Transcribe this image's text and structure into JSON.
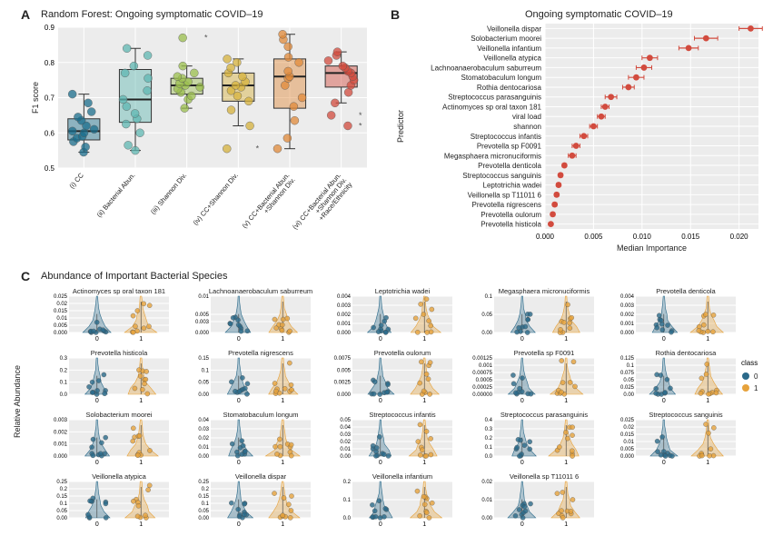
{
  "panelA": {
    "label": "A",
    "title": "Random Forest: Ongoing symptomatic COVID–19",
    "ylabel": "F1 score",
    "ylim": [
      0.5,
      0.9
    ],
    "ytick_step": 0.1,
    "plot_bg": "#ececec",
    "grid_color": "#ffffff",
    "categories": [
      "(i) CC",
      "(ii) Bacterial Abun.",
      "(iii) Shannon Div.",
      "(iv) CC+Shannon Div.",
      "(v) CC+Bacterial Abun.\n+Shannon Div.",
      "(vi) CC+Bacterial Abun.\n+Shannon Div.\n+Race/Ethnicity"
    ],
    "colors": [
      "#1b6e8c",
      "#5fb7b2",
      "#9bbf4d",
      "#d6b23c",
      "#e08a3a",
      "#d24b3e"
    ],
    "box": [
      {
        "q1": 0.58,
        "med": 0.605,
        "q3": 0.64,
        "lw": 0.545,
        "uw": 0.71
      },
      {
        "q1": 0.63,
        "med": 0.695,
        "q3": 0.78,
        "lw": 0.55,
        "uw": 0.84
      },
      {
        "q1": 0.71,
        "med": 0.735,
        "q3": 0.755,
        "lw": 0.67,
        "uw": 0.79
      },
      {
        "q1": 0.69,
        "med": 0.735,
        "q3": 0.77,
        "lw": 0.62,
        "uw": 0.81
      },
      {
        "q1": 0.67,
        "med": 0.76,
        "q3": 0.81,
        "lw": 0.555,
        "uw": 0.88
      },
      {
        "q1": 0.73,
        "med": 0.77,
        "q3": 0.79,
        "lw": 0.685,
        "uw": 0.83
      }
    ],
    "points": [
      [
        0.545,
        0.56,
        0.575,
        0.585,
        0.59,
        0.6,
        0.605,
        0.61,
        0.62,
        0.635,
        0.645,
        0.66,
        0.685,
        0.71
      ],
      [
        0.55,
        0.565,
        0.6,
        0.625,
        0.64,
        0.655,
        0.675,
        0.695,
        0.72,
        0.755,
        0.77,
        0.79,
        0.82,
        0.84
      ],
      [
        0.67,
        0.695,
        0.705,
        0.715,
        0.725,
        0.73,
        0.735,
        0.74,
        0.745,
        0.755,
        0.76,
        0.77,
        0.79,
        0.87
      ],
      [
        0.555,
        0.62,
        0.665,
        0.69,
        0.705,
        0.72,
        0.73,
        0.735,
        0.745,
        0.76,
        0.77,
        0.785,
        0.8,
        0.81
      ],
      [
        0.555,
        0.585,
        0.635,
        0.675,
        0.7,
        0.735,
        0.755,
        0.76,
        0.775,
        0.8,
        0.815,
        0.845,
        0.865,
        0.88
      ],
      [
        0.62,
        0.65,
        0.685,
        0.715,
        0.735,
        0.75,
        0.76,
        0.77,
        0.775,
        0.785,
        0.79,
        0.805,
        0.82,
        0.83
      ]
    ],
    "outliers": [
      [],
      [],
      [
        0.87
      ],
      [
        0.555
      ],
      [],
      [
        0.62,
        0.65
      ]
    ]
  },
  "panelB": {
    "label": "B",
    "title": "Ongoing symptomatic COVID–19",
    "ylabel": "Predictor",
    "xlabel": "Median Importance",
    "xlim": [
      0,
      0.022
    ],
    "xticks": [
      0.0,
      0.005,
      0.01,
      0.015,
      0.02
    ],
    "plot_bg": "#ececec",
    "grid_color": "#ffffff",
    "point_color": "#d24b3e",
    "items": [
      {
        "name": "Veillonella dispar",
        "val": 0.0212,
        "lo": 0.02,
        "hi": 0.0224
      },
      {
        "name": "Solobacterium moorei",
        "val": 0.0166,
        "lo": 0.0154,
        "hi": 0.0178
      },
      {
        "name": "Veillonella infantium",
        "val": 0.0148,
        "lo": 0.0138,
        "hi": 0.0158
      },
      {
        "name": "Veillonella atypica",
        "val": 0.0108,
        "lo": 0.01,
        "hi": 0.0116
      },
      {
        "name": "Lachnoanaerobaculum saburreum",
        "val": 0.0102,
        "lo": 0.0094,
        "hi": 0.011
      },
      {
        "name": "Stomatobaculum longum",
        "val": 0.0094,
        "lo": 0.0086,
        "hi": 0.0102
      },
      {
        "name": "Rothia dentocariosa",
        "val": 0.0086,
        "lo": 0.008,
        "hi": 0.0092
      },
      {
        "name": "Streptococcus parasanguinis",
        "val": 0.0068,
        "lo": 0.0062,
        "hi": 0.0074
      },
      {
        "name": "Actinomyces sp oral taxon 181",
        "val": 0.0062,
        "lo": 0.0058,
        "hi": 0.0066
      },
      {
        "name": "viral load",
        "val": 0.0058,
        "lo": 0.0054,
        "hi": 0.0062
      },
      {
        "name": "shannon",
        "val": 0.005,
        "lo": 0.0046,
        "hi": 0.0054
      },
      {
        "name": "Streptococcus infantis",
        "val": 0.004,
        "lo": 0.0036,
        "hi": 0.0044
      },
      {
        "name": "Prevotella sp F0091",
        "val": 0.0032,
        "lo": 0.0028,
        "hi": 0.0036
      },
      {
        "name": "Megasphaera micronuciformis",
        "val": 0.0028,
        "lo": 0.0024,
        "hi": 0.0032
      },
      {
        "name": "Prevotella denticola",
        "val": 0.002,
        "lo": 0.0018,
        "hi": 0.0022
      },
      {
        "name": "Streptococcus sanguinis",
        "val": 0.0016,
        "lo": 0.0014,
        "hi": 0.0018
      },
      {
        "name": "Leptotrichia wadei",
        "val": 0.0014,
        "lo": 0.0012,
        "hi": 0.0016
      },
      {
        "name": "Veillonella sp T11011 6",
        "val": 0.0012,
        "lo": 0.001,
        "hi": 0.0014
      },
      {
        "name": "Prevotella nigrescens",
        "val": 0.001,
        "lo": 0.0008,
        "hi": 0.0012
      },
      {
        "name": "Prevotella oulorum",
        "val": 0.0008,
        "lo": 0.0006,
        "hi": 0.001
      },
      {
        "name": "Prevotella histicola",
        "val": 0.0006,
        "lo": 0.0005,
        "hi": 0.0007
      }
    ]
  },
  "panelC": {
    "label": "C",
    "title": "Abundance of Important Bacterial Species",
    "plot_bg": "#ececec",
    "grid_color": "#ffffff",
    "ylabel": "Relative Abundance",
    "legend_title": "class",
    "legend_items": [
      "0",
      "1"
    ],
    "class_colors": [
      "#2b6a8a",
      "#e6a23c"
    ],
    "panels": [
      {
        "name": "Actinomyces sp oral taxon 181",
        "yticks": [
          0.0,
          0.005,
          0.01,
          0.015,
          0.02,
          0.025
        ]
      },
      {
        "name": "Lachnoanaerobaculum saburreum",
        "yticks": [
          0.0,
          0.003,
          0.005,
          0.01
        ]
      },
      {
        "name": "Leptotrichia wadei",
        "yticks": [
          0.0,
          0.001,
          0.002,
          0.003,
          0.004
        ]
      },
      {
        "name": "Megasphaera micronuciformis",
        "yticks": [
          0.0,
          0.05,
          0.1
        ]
      },
      {
        "name": "Prevotella denticola",
        "yticks": [
          0.0,
          0.001,
          0.002,
          0.003,
          0.004
        ]
      },
      {
        "name": "Prevotella histicola",
        "yticks": [
          0.0,
          0.1,
          0.2,
          0.3
        ]
      },
      {
        "name": "Prevotella nigrescens",
        "yticks": [
          0.0,
          0.05,
          0.1,
          0.15
        ]
      },
      {
        "name": "Prevotella oulorum",
        "yticks": [
          0.0,
          0.0025,
          0.005,
          0.0075
        ]
      },
      {
        "name": "Prevotella sp F0091",
        "yticks": [
          0.0,
          0.00025,
          0.0005,
          0.00075,
          0.001,
          0.00125
        ]
      },
      {
        "name": "Rothia dentocariosa",
        "yticks": [
          0.0,
          0.025,
          0.05,
          0.075,
          0.1,
          0.125
        ]
      },
      {
        "name": "Solobacterium moorei",
        "yticks": [
          0.0,
          0.001,
          0.002,
          0.003
        ]
      },
      {
        "name": "Stomatobaculum longum",
        "yticks": [
          0.0,
          0.01,
          0.02,
          0.03,
          0.04
        ]
      },
      {
        "name": "Streptococcus infantis",
        "yticks": [
          0.0,
          0.01,
          0.02,
          0.03,
          0.04,
          0.05
        ]
      },
      {
        "name": "Streptococcus parasanguinis",
        "yticks": [
          0.0,
          0.1,
          0.2,
          0.3,
          0.4
        ]
      },
      {
        "name": "Streptococcus sanguinis",
        "yticks": [
          0.0,
          0.005,
          0.01,
          0.015,
          0.02,
          0.025
        ]
      },
      {
        "name": "Veillonella atypica",
        "yticks": [
          0.0,
          0.05,
          0.1,
          0.15,
          0.2,
          0.25
        ]
      },
      {
        "name": "Veillonella dispar",
        "yticks": [
          0.0,
          0.05,
          0.1,
          0.15,
          0.2,
          0.25
        ]
      },
      {
        "name": "Veillonella infantium",
        "yticks": [
          0.0,
          0.1,
          0.2
        ]
      },
      {
        "name": "Veillonella sp T11011 6",
        "yticks": [
          0.0,
          0.01,
          0.02
        ]
      }
    ]
  }
}
